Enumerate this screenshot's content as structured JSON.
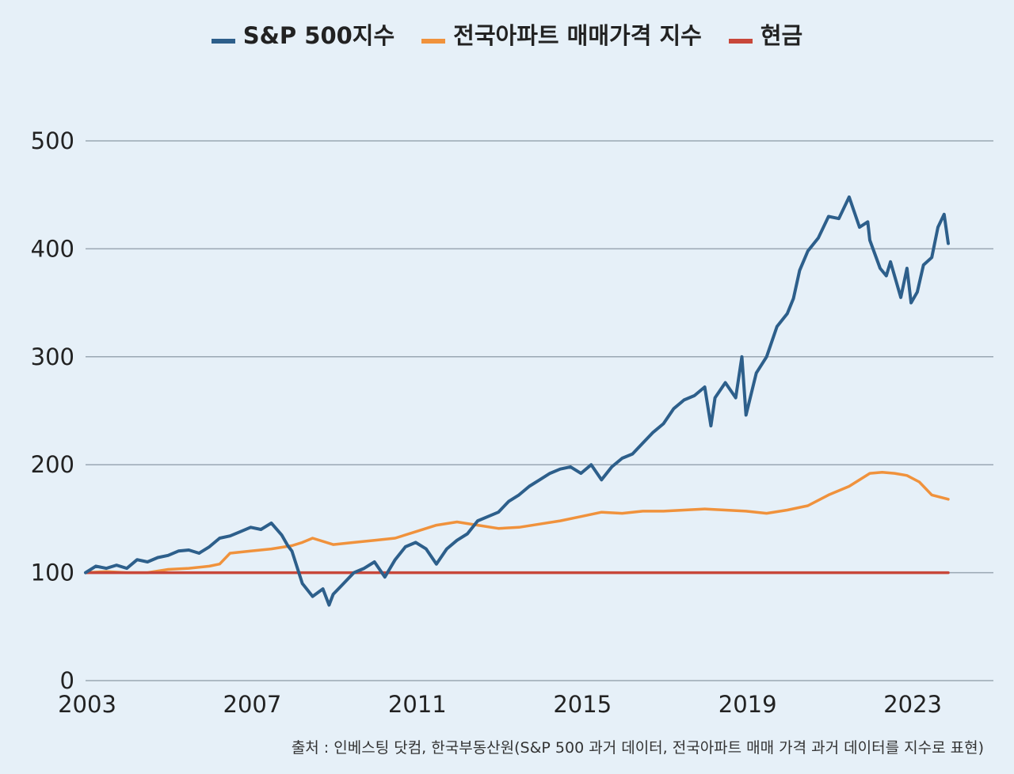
{
  "legend": [
    {
      "label": "S&P 500지수",
      "color": "#2d5f8b"
    },
    {
      "label": "전국아파트 매매가격 지수",
      "color": "#f0923c"
    },
    {
      "label": "현금",
      "color": "#c8473a"
    }
  ],
  "source": "출처 : 인베스팅 닷컴, 한국부동산원(S&P 500 과거 데이터, 전국아파트 매매 가격 과거 데이터를 지수로 표현)",
  "chart_data": {
    "type": "line",
    "title": "",
    "xlabel": "",
    "ylabel": "",
    "xlim": [
      2003,
      2023
    ],
    "ylim": [
      0,
      500
    ],
    "x_ticks": [
      "2003",
      "2007",
      "2011",
      "2015",
      "2019",
      "2023"
    ],
    "y_ticks": [
      "0",
      "100",
      "200",
      "300",
      "400",
      "500"
    ],
    "grid": "horizontal",
    "legend_position": "top",
    "series": [
      {
        "name": "S&P 500지수",
        "color": "#2d5f8b",
        "x": [
          2003.0,
          2003.25,
          2003.5,
          2003.75,
          2004.0,
          2004.25,
          2004.5,
          2004.75,
          2005.0,
          2005.25,
          2005.5,
          2005.75,
          2006.0,
          2006.25,
          2006.5,
          2006.75,
          2007.0,
          2007.25,
          2007.5,
          2007.75,
          2007.9,
          2008.0,
          2008.25,
          2008.5,
          2008.75,
          2008.9,
          2009.0,
          2009.2,
          2009.5,
          2009.75,
          2010.0,
          2010.25,
          2010.5,
          2010.75,
          2011.0,
          2011.25,
          2011.5,
          2011.75,
          2012.0,
          2012.25,
          2012.5,
          2012.75,
          2013.0,
          2013.25,
          2013.5,
          2013.75,
          2014.0,
          2014.25,
          2014.5,
          2014.75,
          2015.0,
          2015.25,
          2015.5,
          2015.75,
          2016.0,
          2016.25,
          2016.5,
          2016.75,
          2017.0,
          2017.25,
          2017.5,
          2017.75,
          2018.0,
          2018.15,
          2018.25,
          2018.5,
          2018.75,
          2018.9,
          2019.0,
          2019.25,
          2019.5,
          2019.75,
          2020.0,
          2020.15,
          2020.3,
          2020.5,
          2020.75,
          2021.0,
          2021.25,
          2021.5,
          2021.75,
          2021.95,
          2022.0,
          2022.25,
          2022.4,
          2022.5,
          2022.75,
          2022.9,
          2023.0,
          2023.15,
          2023.3,
          2023.5,
          2023.65,
          2023.8,
          2023.9
        ],
        "y": [
          100,
          106,
          104,
          107,
          104,
          112,
          110,
          114,
          116,
          120,
          121,
          118,
          124,
          132,
          134,
          138,
          142,
          140,
          146,
          135,
          125,
          120,
          90,
          78,
          85,
          70,
          80,
          88,
          100,
          104,
          110,
          96,
          112,
          124,
          128,
          122,
          108,
          122,
          130,
          136,
          148,
          152,
          156,
          166,
          172,
          180,
          186,
          192,
          196,
          198,
          192,
          200,
          186,
          198,
          206,
          210,
          220,
          230,
          238,
          252,
          260,
          264,
          272,
          236,
          262,
          276,
          262,
          300,
          246,
          285,
          300,
          328,
          340,
          354,
          380,
          398,
          410,
          430,
          428,
          448,
          420,
          425,
          408,
          382,
          375,
          388,
          355,
          382,
          350,
          360,
          385,
          392,
          420,
          432,
          405
        ]
      },
      {
        "name": "전국아파트 매매가격 지수",
        "color": "#f0923c",
        "x": [
          2003.0,
          2003.5,
          2004.0,
          2004.5,
          2005.0,
          2005.5,
          2006.0,
          2006.25,
          2006.5,
          2007.0,
          2007.5,
          2008.0,
          2008.25,
          2008.5,
          2009.0,
          2009.5,
          2010.0,
          2010.5,
          2011.0,
          2011.5,
          2012.0,
          2012.5,
          2013.0,
          2013.5,
          2014.0,
          2014.5,
          2015.0,
          2015.5,
          2016.0,
          2016.5,
          2017.0,
          2017.5,
          2018.0,
          2018.5,
          2019.0,
          2019.5,
          2020.0,
          2020.5,
          2021.0,
          2021.5,
          2022.0,
          2022.3,
          2022.6,
          2022.9,
          2023.2,
          2023.5,
          2023.9
        ],
        "y": [
          100,
          101,
          100,
          100,
          103,
          104,
          106,
          108,
          118,
          120,
          122,
          125,
          128,
          132,
          126,
          128,
          130,
          132,
          138,
          144,
          147,
          144,
          141,
          142,
          145,
          148,
          152,
          156,
          155,
          157,
          157,
          158,
          159,
          158,
          157,
          155,
          158,
          162,
          172,
          180,
          192,
          193,
          192,
          190,
          184,
          172,
          168
        ]
      },
      {
        "name": "현금",
        "color": "#c8473a",
        "x": [
          2003,
          2023.9
        ],
        "y": [
          100,
          100
        ]
      }
    ]
  }
}
